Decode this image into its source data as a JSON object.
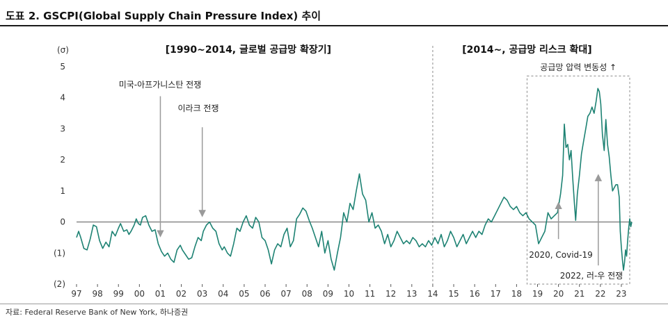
{
  "title": "도표 2. GSCPI(Global Supply Chain Pressure Index) 추이",
  "source": "자료: Federal Reserve Bank of New York, 하나증권",
  "chart_data": {
    "type": "line",
    "ylabel": "(σ)",
    "ylim": [
      -2,
      5
    ],
    "xlim": [
      1997.0,
      2023.5
    ],
    "y_ticks": [
      {
        "v": 5,
        "label": "5"
      },
      {
        "v": 4,
        "label": "4"
      },
      {
        "v": 3,
        "label": "3"
      },
      {
        "v": 2,
        "label": "2"
      },
      {
        "v": 1,
        "label": "1"
      },
      {
        "v": 0,
        "label": "0"
      },
      {
        "v": -1,
        "label": "(1)"
      },
      {
        "v": -2,
        "label": "(2)"
      }
    ],
    "x_ticks": [
      "97",
      "98",
      "99",
      "00",
      "01",
      "02",
      "03",
      "04",
      "05",
      "06",
      "07",
      "08",
      "09",
      "10",
      "11",
      "12",
      "13",
      "14",
      "15",
      "16",
      "17",
      "18",
      "19",
      "20",
      "21",
      "22",
      "23"
    ],
    "line_color": "#1d8273",
    "period_labels": [
      {
        "text": "[1990~2014, 글로벌 공급망 확장기]",
        "x": 2005.2
      },
      {
        "text": "[2014~, 공급망 리스크 확대]",
        "x": 2018.5
      }
    ],
    "divider_x": 2014.0,
    "box": {
      "x0": 2018.5,
      "x1": 2023.4,
      "y0": -2.0,
      "y1": 4.7,
      "label": "공급망 압력 변동성 ↑"
    },
    "annotations": [
      {
        "text": "미국-아프가니스탄 전쟁",
        "x": 2001.0,
        "arrow_from": 4.05,
        "arrow_to": -0.45
      },
      {
        "text": "이라크 전쟁",
        "x": 2003.0,
        "arrow_from": 3.05,
        "arrow_to": 0.2
      },
      {
        "text": "2020, Covid-19",
        "x": 2020.0,
        "arrow_from": -0.55,
        "arrow_to": 0.6
      },
      {
        "text": "2022, 러-우 전쟁",
        "x": 2021.9,
        "arrow_from": -1.4,
        "arrow_to": 1.5
      }
    ],
    "series": [
      {
        "values": [
          [
            1997.0,
            -0.5
          ],
          [
            1997.1,
            -0.3
          ],
          [
            1997.2,
            -0.5
          ],
          [
            1997.35,
            -0.85
          ],
          [
            1997.5,
            -0.9
          ],
          [
            1997.65,
            -0.55
          ],
          [
            1997.8,
            -0.1
          ],
          [
            1997.95,
            -0.15
          ],
          [
            1998.1,
            -0.6
          ],
          [
            1998.25,
            -0.85
          ],
          [
            1998.4,
            -0.65
          ],
          [
            1998.55,
            -0.8
          ],
          [
            1998.7,
            -0.3
          ],
          [
            1998.85,
            -0.45
          ],
          [
            1999.0,
            -0.2
          ],
          [
            1999.1,
            -0.05
          ],
          [
            1999.25,
            -0.3
          ],
          [
            1999.4,
            -0.25
          ],
          [
            1999.5,
            -0.4
          ],
          [
            1999.6,
            -0.3
          ],
          [
            1999.75,
            -0.1
          ],
          [
            1999.85,
            0.1
          ],
          [
            1999.95,
            -0.05
          ],
          [
            2000.05,
            -0.1
          ],
          [
            2000.15,
            0.15
          ],
          [
            2000.3,
            0.2
          ],
          [
            2000.45,
            -0.1
          ],
          [
            2000.6,
            -0.3
          ],
          [
            2000.75,
            -0.25
          ],
          [
            2000.9,
            -0.7
          ],
          [
            2001.05,
            -0.95
          ],
          [
            2001.2,
            -1.1
          ],
          [
            2001.35,
            -1.0
          ],
          [
            2001.5,
            -1.2
          ],
          [
            2001.65,
            -1.3
          ],
          [
            2001.8,
            -0.9
          ],
          [
            2001.95,
            -0.75
          ],
          [
            2002.05,
            -0.9
          ],
          [
            2002.2,
            -1.05
          ],
          [
            2002.35,
            -1.2
          ],
          [
            2002.5,
            -1.15
          ],
          [
            2002.65,
            -0.8
          ],
          [
            2002.8,
            -0.5
          ],
          [
            2002.95,
            -0.6
          ],
          [
            2003.05,
            -0.3
          ],
          [
            2003.2,
            -0.1
          ],
          [
            2003.35,
            0.0
          ],
          [
            2003.5,
            -0.2
          ],
          [
            2003.65,
            -0.3
          ],
          [
            2003.8,
            -0.7
          ],
          [
            2003.95,
            -0.9
          ],
          [
            2004.05,
            -0.8
          ],
          [
            2004.2,
            -1.0
          ],
          [
            2004.35,
            -1.1
          ],
          [
            2004.5,
            -0.7
          ],
          [
            2004.65,
            -0.2
          ],
          [
            2004.8,
            -0.3
          ],
          [
            2004.95,
            0.0
          ],
          [
            2005.1,
            0.2
          ],
          [
            2005.25,
            -0.1
          ],
          [
            2005.4,
            -0.2
          ],
          [
            2005.55,
            0.15
          ],
          [
            2005.7,
            0.0
          ],
          [
            2005.85,
            -0.5
          ],
          [
            2006.0,
            -0.6
          ],
          [
            2006.15,
            -0.9
          ],
          [
            2006.3,
            -1.35
          ],
          [
            2006.45,
            -0.9
          ],
          [
            2006.6,
            -0.7
          ],
          [
            2006.75,
            -0.8
          ],
          [
            2006.9,
            -0.4
          ],
          [
            2007.05,
            -0.2
          ],
          [
            2007.2,
            -0.8
          ],
          [
            2007.35,
            -0.6
          ],
          [
            2007.5,
            0.1
          ],
          [
            2007.65,
            0.25
          ],
          [
            2007.8,
            0.45
          ],
          [
            2007.95,
            0.35
          ],
          [
            2008.1,
            0.05
          ],
          [
            2008.25,
            -0.2
          ],
          [
            2008.4,
            -0.5
          ],
          [
            2008.55,
            -0.8
          ],
          [
            2008.7,
            -0.3
          ],
          [
            2008.85,
            -1.0
          ],
          [
            2009.0,
            -0.6
          ],
          [
            2009.15,
            -1.2
          ],
          [
            2009.3,
            -1.55
          ],
          [
            2009.45,
            -1.0
          ],
          [
            2009.6,
            -0.5
          ],
          [
            2009.75,
            0.3
          ],
          [
            2009.9,
            0.0
          ],
          [
            2010.05,
            0.6
          ],
          [
            2010.2,
            0.4
          ],
          [
            2010.35,
            1.0
          ],
          [
            2010.5,
            1.55
          ],
          [
            2010.65,
            0.9
          ],
          [
            2010.8,
            0.7
          ],
          [
            2010.95,
            0.0
          ],
          [
            2011.1,
            0.3
          ],
          [
            2011.25,
            -0.2
          ],
          [
            2011.4,
            -0.1
          ],
          [
            2011.55,
            -0.3
          ],
          [
            2011.7,
            -0.7
          ],
          [
            2011.85,
            -0.4
          ],
          [
            2012.0,
            -0.8
          ],
          [
            2012.15,
            -0.6
          ],
          [
            2012.3,
            -0.3
          ],
          [
            2012.45,
            -0.5
          ],
          [
            2012.6,
            -0.7
          ],
          [
            2012.75,
            -0.6
          ],
          [
            2012.9,
            -0.7
          ],
          [
            2013.05,
            -0.5
          ],
          [
            2013.2,
            -0.6
          ],
          [
            2013.35,
            -0.8
          ],
          [
            2013.5,
            -0.7
          ],
          [
            2013.65,
            -0.8
          ],
          [
            2013.8,
            -0.6
          ],
          [
            2013.95,
            -0.75
          ],
          [
            2014.1,
            -0.5
          ],
          [
            2014.25,
            -0.7
          ],
          [
            2014.4,
            -0.4
          ],
          [
            2014.55,
            -0.8
          ],
          [
            2014.7,
            -0.6
          ],
          [
            2014.85,
            -0.3
          ],
          [
            2015.0,
            -0.5
          ],
          [
            2015.15,
            -0.8
          ],
          [
            2015.3,
            -0.6
          ],
          [
            2015.45,
            -0.4
          ],
          [
            2015.6,
            -0.7
          ],
          [
            2015.75,
            -0.5
          ],
          [
            2015.9,
            -0.3
          ],
          [
            2016.05,
            -0.5
          ],
          [
            2016.2,
            -0.3
          ],
          [
            2016.35,
            -0.4
          ],
          [
            2016.5,
            -0.1
          ],
          [
            2016.65,
            0.1
          ],
          [
            2016.8,
            0.0
          ],
          [
            2016.95,
            0.2
          ],
          [
            2017.1,
            0.4
          ],
          [
            2017.25,
            0.6
          ],
          [
            2017.4,
            0.8
          ],
          [
            2017.55,
            0.7
          ],
          [
            2017.7,
            0.5
          ],
          [
            2017.85,
            0.4
          ],
          [
            2018.0,
            0.5
          ],
          [
            2018.15,
            0.3
          ],
          [
            2018.3,
            0.2
          ],
          [
            2018.45,
            0.3
          ],
          [
            2018.6,
            0.1
          ],
          [
            2018.75,
            0.0
          ],
          [
            2018.9,
            -0.1
          ],
          [
            2019.05,
            -0.7
          ],
          [
            2019.2,
            -0.5
          ],
          [
            2019.35,
            -0.3
          ],
          [
            2019.5,
            0.3
          ],
          [
            2019.65,
            0.1
          ],
          [
            2019.8,
            0.2
          ],
          [
            2019.95,
            0.3
          ],
          [
            2020.1,
            0.9
          ],
          [
            2020.2,
            1.5
          ],
          [
            2020.28,
            3.15
          ],
          [
            2020.36,
            2.4
          ],
          [
            2020.44,
            2.5
          ],
          [
            2020.52,
            2.0
          ],
          [
            2020.6,
            2.3
          ],
          [
            2020.68,
            1.4
          ],
          [
            2020.76,
            0.6
          ],
          [
            2020.82,
            0.05
          ],
          [
            2020.9,
            0.9
          ],
          [
            2021.0,
            1.5
          ],
          [
            2021.1,
            2.2
          ],
          [
            2021.2,
            2.6
          ],
          [
            2021.3,
            3.0
          ],
          [
            2021.4,
            3.4
          ],
          [
            2021.5,
            3.5
          ],
          [
            2021.6,
            3.7
          ],
          [
            2021.7,
            3.5
          ],
          [
            2021.8,
            3.9
          ],
          [
            2021.88,
            4.3
          ],
          [
            2021.95,
            4.2
          ],
          [
            2022.02,
            3.8
          ],
          [
            2022.1,
            2.8
          ],
          [
            2022.18,
            2.3
          ],
          [
            2022.26,
            3.3
          ],
          [
            2022.34,
            2.5
          ],
          [
            2022.42,
            2.1
          ],
          [
            2022.5,
            1.5
          ],
          [
            2022.58,
            1.0
          ],
          [
            2022.66,
            1.1
          ],
          [
            2022.74,
            1.2
          ],
          [
            2022.82,
            1.2
          ],
          [
            2022.9,
            0.8
          ],
          [
            2022.95,
            -0.3
          ],
          [
            2023.0,
            -0.8
          ],
          [
            2023.05,
            -1.2
          ],
          [
            2023.1,
            -1.55
          ],
          [
            2023.15,
            -1.3
          ],
          [
            2023.2,
            -0.9
          ],
          [
            2023.25,
            -1.1
          ],
          [
            2023.3,
            -0.6
          ],
          [
            2023.35,
            -0.2
          ],
          [
            2023.4,
            0.1
          ],
          [
            2023.45,
            -0.15
          ],
          [
            2023.5,
            0.0
          ]
        ]
      }
    ]
  }
}
